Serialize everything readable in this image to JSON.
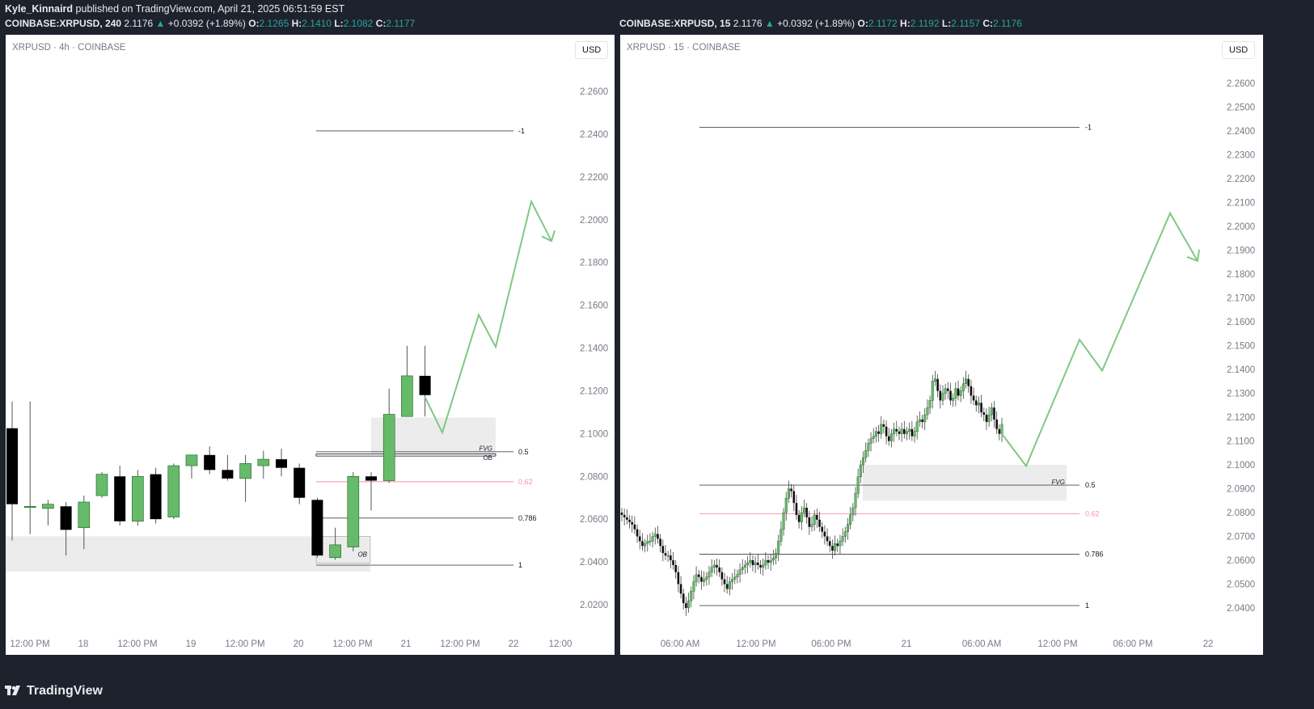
{
  "header": {
    "author": "Kyle_Kinnaird",
    "published_text": "published on TradingView.com, April 21, 2025 06:51:59 EST"
  },
  "left_info": {
    "symbol": "COINBASE:XRPUSD, 240",
    "price": "2.1176",
    "change": "+0.0392 (+1.89%)",
    "o": "2.1265",
    "h": "2.1410",
    "l": "2.1082",
    "c": "2.1177"
  },
  "right_info": {
    "symbol": "COINBASE:XRPUSD, 15",
    "price": "2.1176",
    "change": "+0.0392 (+1.89%)",
    "o": "2.1172",
    "h": "2.1192",
    "l": "2.1157",
    "c": "2.1176"
  },
  "footer": {
    "brand": "TradingView"
  },
  "colors": {
    "up": "#66bb6a",
    "down": "#000000",
    "projection": "#81c784",
    "zone": "#ececec",
    "fib_062": "#f48fb1",
    "axis_text": "#787b86",
    "page_bg": "#1e222d"
  },
  "chart_data": [
    {
      "type": "candlestick",
      "legend": "XRPUSD · 4h · COINBASE",
      "currency_button": "USD",
      "ylim": [
        2.0,
        2.275
      ],
      "y_ticks": [
        "2.2600",
        "2.2400",
        "2.2200",
        "2.2000",
        "2.1800",
        "2.1600",
        "2.1400",
        "2.1200",
        "2.1000",
        "2.0800",
        "2.0600",
        "2.0400",
        "2.0200"
      ],
      "x_ticks": [
        "12:00 PM",
        "18",
        "12:00 PM",
        "19",
        "12:00 PM",
        "20",
        "12:00 PM",
        "21",
        "12:00 PM",
        "22",
        "12:00"
      ],
      "candles": [
        {
          "o": 2.1025,
          "h": 2.115,
          "l": 2.05,
          "c": 2.067
        },
        {
          "o": 2.066,
          "h": 2.115,
          "l": 2.053,
          "c": 2.066
        },
        {
          "o": 2.065,
          "h": 2.069,
          "l": 2.057,
          "c": 2.067
        },
        {
          "o": 2.066,
          "h": 2.068,
          "l": 2.043,
          "c": 2.055
        },
        {
          "o": 2.056,
          "h": 2.071,
          "l": 2.046,
          "c": 2.068
        },
        {
          "o": 2.071,
          "h": 2.082,
          "l": 2.07,
          "c": 2.081
        },
        {
          "o": 2.08,
          "h": 2.085,
          "l": 2.057,
          "c": 2.059
        },
        {
          "o": 2.059,
          "h": 2.083,
          "l": 2.057,
          "c": 2.08
        },
        {
          "o": 2.081,
          "h": 2.084,
          "l": 2.058,
          "c": 2.06
        },
        {
          "o": 2.061,
          "h": 2.086,
          "l": 2.06,
          "c": 2.085
        },
        {
          "o": 2.085,
          "h": 2.088,
          "l": 2.079,
          "c": 2.09
        },
        {
          "o": 2.09,
          "h": 2.094,
          "l": 2.081,
          "c": 2.083
        },
        {
          "o": 2.083,
          "h": 2.09,
          "l": 2.078,
          "c": 2.079
        },
        {
          "o": 2.079,
          "h": 2.09,
          "l": 2.068,
          "c": 2.086
        },
        {
          "o": 2.085,
          "h": 2.092,
          "l": 2.079,
          "c": 2.088
        },
        {
          "o": 2.088,
          "h": 2.093,
          "l": 2.08,
          "c": 2.084
        },
        {
          "o": 2.084,
          "h": 2.086,
          "l": 2.067,
          "c": 2.07
        },
        {
          "o": 2.069,
          "h": 2.07,
          "l": 2.042,
          "c": 2.043
        },
        {
          "o": 2.042,
          "h": 2.056,
          "l": 2.041,
          "c": 2.048
        },
        {
          "o": 2.047,
          "h": 2.082,
          "l": 2.045,
          "c": 2.08
        },
        {
          "o": 2.08,
          "h": 2.082,
          "l": 2.064,
          "c": 2.078
        },
        {
          "o": 2.078,
          "h": 2.121,
          "l": 2.077,
          "c": 2.109
        },
        {
          "o": 2.108,
          "h": 2.141,
          "l": 2.108,
          "c": 2.127
        },
        {
          "o": 2.127,
          "h": 2.141,
          "l": 2.108,
          "c": 2.118
        }
      ],
      "levels": [
        {
          "label": "-1",
          "price": 2.2415
        },
        {
          "label": "0.5",
          "price": 2.0915
        },
        {
          "label": "0.62",
          "price": 2.0775
        },
        {
          "label": "0.786",
          "price": 2.0605
        },
        {
          "label": "1",
          "price": 2.0385
        }
      ],
      "zones": [
        {
          "label": "FVG",
          "top": 2.1075,
          "bottom": 2.0905
        },
        {
          "label": "OB",
          "top": 2.0905,
          "bottom": 2.0895
        },
        {
          "label": "",
          "top": 2.052,
          "bottom": 2.0355
        },
        {
          "label": "OB",
          "top": 2.052,
          "bottom": 2.0395
        }
      ],
      "projection": [
        2.1175,
        2.1005,
        2.1555,
        2.1405,
        2.2085,
        2.19
      ]
    },
    {
      "type": "candlestick",
      "legend": "XRPUSD · 15 · COINBASE",
      "currency_button": "USD",
      "ylim": [
        2.03,
        2.27
      ],
      "y_ticks": [
        "2.2600",
        "2.2500",
        "2.2400",
        "2.2300",
        "2.2200",
        "2.2100",
        "2.2000",
        "2.1900",
        "2.1800",
        "2.1700",
        "2.1600",
        "2.1500",
        "2.1400",
        "2.1300",
        "2.1200",
        "2.1100",
        "2.1000",
        "2.0900",
        "2.0800",
        "2.0700",
        "2.0600",
        "2.0500",
        "2.0400"
      ],
      "x_ticks": [
        "06:00 AM",
        "12:00 PM",
        "06:00 PM",
        "21",
        "06:00 AM",
        "12:00 PM",
        "06:00 PM",
        "22"
      ],
      "levels": [
        {
          "label": "-1",
          "price": 2.2415
        },
        {
          "label": "0.5",
          "price": 2.0915
        },
        {
          "label": "0.62",
          "price": 2.0795
        },
        {
          "label": "0.786",
          "price": 2.0625
        },
        {
          "label": "1",
          "price": 2.041
        }
      ],
      "zones": [
        {
          "label": "FVG",
          "top": 2.1,
          "bottom": 2.085
        }
      ],
      "closes": [
        2.079,
        2.078,
        2.077,
        2.076,
        2.075,
        2.073,
        2.07,
        2.068,
        2.066,
        2.067,
        2.068,
        2.068,
        2.07,
        2.071,
        2.069,
        2.066,
        2.063,
        2.062,
        2.062,
        2.06,
        2.058,
        2.055,
        2.05,
        2.046,
        2.042,
        2.04,
        2.043,
        2.047,
        2.051,
        2.054,
        2.053,
        2.051,
        2.052,
        2.053,
        2.055,
        2.057,
        2.058,
        2.057,
        2.055,
        2.052,
        2.05,
        2.048,
        2.051,
        2.052,
        2.053,
        2.054,
        2.056,
        2.057,
        2.058,
        2.059,
        2.06,
        2.058,
        2.059,
        2.058,
        2.057,
        2.058,
        2.06,
        2.059,
        2.06,
        2.061,
        2.063,
        2.068,
        2.073,
        2.08,
        2.086,
        2.09,
        2.089,
        2.084,
        2.079,
        2.076,
        2.08,
        2.082,
        2.078,
        2.074,
        2.075,
        2.079,
        2.077,
        2.074,
        2.072,
        2.07,
        2.068,
        2.066,
        2.064,
        2.067,
        2.066,
        2.068,
        2.07,
        2.072,
        2.075,
        2.079,
        2.082,
        2.088,
        2.095,
        2.1,
        2.103,
        2.106,
        2.109,
        2.111,
        2.112,
        2.114,
        2.113,
        2.117,
        2.116,
        2.112,
        2.11,
        2.113,
        2.115,
        2.114,
        2.113,
        2.115,
        2.113,
        2.114,
        2.115,
        2.112,
        2.114,
        2.118,
        2.119,
        2.118,
        2.121,
        2.124,
        2.127,
        2.135,
        2.136,
        2.131,
        2.127,
        2.13,
        2.132,
        2.131,
        2.127,
        2.128,
        2.132,
        2.129,
        2.131,
        2.134,
        2.136,
        2.133,
        2.129,
        2.127,
        2.125,
        2.126,
        2.122,
        2.121,
        2.118,
        2.121,
        2.124,
        2.119,
        2.115,
        2.113,
        2.117
      ]
    }
  ]
}
